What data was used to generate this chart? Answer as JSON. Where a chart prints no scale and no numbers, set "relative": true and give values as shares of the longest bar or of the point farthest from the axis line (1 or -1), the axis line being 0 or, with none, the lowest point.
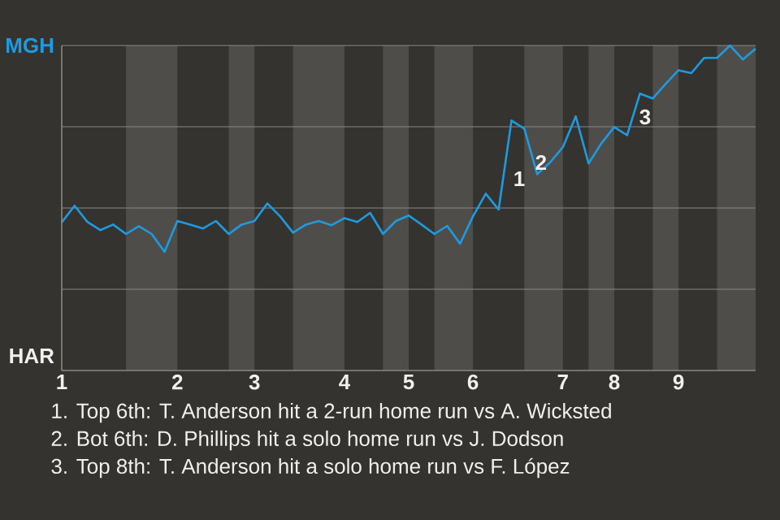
{
  "chart_data": {
    "type": "line",
    "categories": [
      "1",
      null,
      null,
      null,
      null,
      null,
      null,
      null,
      null,
      "2",
      null,
      null,
      null,
      null,
      null,
      "3",
      null,
      null,
      null,
      null,
      null,
      null,
      "4",
      null,
      null,
      null,
      null,
      "5",
      null,
      null,
      null,
      null,
      "6",
      null,
      null,
      null,
      null,
      null,
      null,
      "7",
      null,
      null,
      null,
      "8",
      null,
      null,
      null,
      null,
      "9",
      null,
      null,
      null,
      null,
      null,
      null
    ],
    "relative": true,
    "series": [
      {
        "color": "#1e9be0",
        "values": [
          0.456,
          0.507,
          0.457,
          0.432,
          0.449,
          0.42,
          0.444,
          0.42,
          0.365,
          0.46,
          0.449,
          0.437,
          0.46,
          0.42,
          0.449,
          0.46,
          0.514,
          0.474,
          0.424,
          0.449,
          0.46,
          0.447,
          0.469,
          0.457,
          0.485,
          0.42,
          0.46,
          0.477,
          0.449,
          0.42,
          0.445,
          0.39,
          0.474,
          0.544,
          0.495,
          0.769,
          0.744,
          0.604,
          0.64,
          0.687,
          0.782,
          0.637,
          0.699,
          0.749,
          0.724,
          0.852,
          0.837,
          0.882,
          0.924,
          0.915,
          0.962,
          0.962,
          1,
          0.957,
          0.99
        ]
      }
    ],
    "line_style": "solid",
    "grid": "y",
    "annotations": [
      "MGH",
      "HAR",
      "1",
      "2",
      "3",
      "1. Top 6th: T. Anderson hit a 2-run home run vs A. Wicksted",
      "2. Bot 6th: D. Phillips hit a solo home run vs J. Dodson",
      "3. Top 8th: T. Anderson hit a solo home run vs F. López"
    ]
  }
}
